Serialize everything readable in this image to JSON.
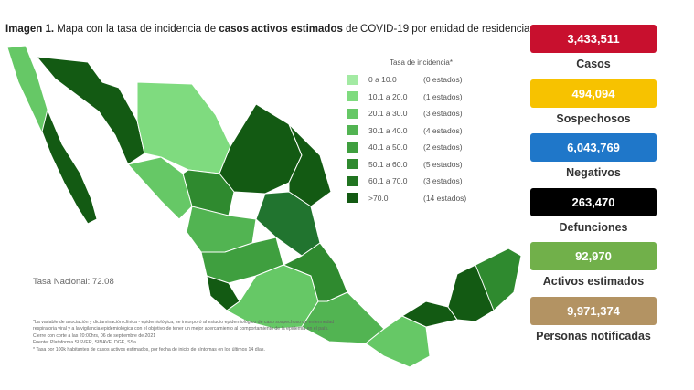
{
  "title": {
    "lead": "Imagen 1.",
    "part1": " Mapa con la tasa de incidencia de ",
    "bold": "casos activos estimados",
    "part2": " de COVID-19 por entidad de residencia"
  },
  "legend": {
    "heading": "Tasa de incidencia*",
    "rows": [
      {
        "range": "0 a 10.0",
        "count": "(0 estados)",
        "color": "#a3eaa3"
      },
      {
        "range": "10.1 a 20.0",
        "count": "(1 estados)",
        "color": "#7fdb7f"
      },
      {
        "range": "20.1 a 30.0",
        "count": "(3 estados)",
        "color": "#66c866"
      },
      {
        "range": "30.1 a 40.0",
        "count": "(4 estados)",
        "color": "#52b452"
      },
      {
        "range": "40.1 a 50.0",
        "count": "(2 estados)",
        "color": "#3f9f3f"
      },
      {
        "range": "50.1 a 60.0",
        "count": "(5 estados)",
        "color": "#2f8a2f"
      },
      {
        "range": "60.1 a 70.0",
        "count": "(3 estados)",
        "color": "#217421"
      },
      {
        "range": ">70.0",
        "count": "(14 estados)",
        "color": "#135a13"
      }
    ]
  },
  "national_rate": "Tasa Nacional: 72.08",
  "notes": [
    "*La variable de asociación y dictaminación clínica - epidemiológica, se incorporó al estudio epidemiológico de caso sospechoso de enfermedad respiratoria viral y a la vigilancia epidemiológica con el objetivo de tener un mejor acercamiento al comportamiento de la epidemia en el país.",
    "Cierre con corte a las 20:00hrs, 06 de septiembre de 2021",
    "Fuente: Plataforma SISVER, SINAVE, DGE, SSa.",
    "* Tasa por 100k habitantes de casos activos estimados, por fecha de inicio de síntomas en los últimos 14 días."
  ],
  "stats": [
    {
      "value": "3,433,511",
      "label": "Casos",
      "color": "#c8102e"
    },
    {
      "value": "494,094",
      "label": "Sospechosos",
      "color": "#f7c200"
    },
    {
      "value": "6,043,769",
      "label": "Negativos",
      "color": "#1f77c9"
    },
    {
      "value": "263,470",
      "label": "Defunciones",
      "color": "#000000"
    },
    {
      "value": "92,970",
      "label": "Activos estimados",
      "color": "#71b04a"
    },
    {
      "value": "9,971,374",
      "label": "Personas notificadas",
      "color": "#b39363"
    }
  ]
}
